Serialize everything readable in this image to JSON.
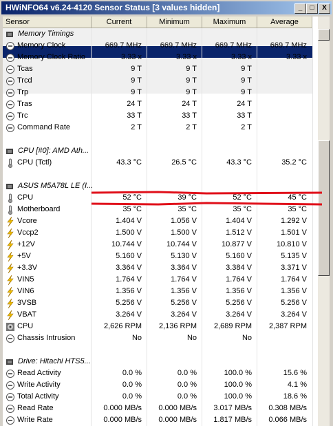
{
  "window": {
    "title": "HWiNFO64 v6.24-4120 Sensor Status [3 values hidden]"
  },
  "table": {
    "columns": [
      "Sensor",
      "Current",
      "Minimum",
      "Maximum",
      "Average"
    ],
    "sections": [
      {
        "title": "Memory Timings",
        "rows": [
          {
            "label": "Memory Clock",
            "icon": "clock",
            "values": [
              "669.7 MHz",
              "669.7 MHz",
              "669.7 MHz",
              "669.7 MHz"
            ]
          },
          {
            "label": "Memory Clock Ratio",
            "icon": "clock",
            "values": [
              "3.33 x",
              "3.33 x",
              "3.33 x",
              "3.33 x"
            ]
          },
          {
            "label": "Tcas",
            "icon": "clock",
            "values": [
              "9 T",
              "9 T",
              "9 T",
              null
            ]
          },
          {
            "label": "Trcd",
            "icon": "clock",
            "values": [
              "9 T",
              "9 T",
              "9 T",
              null
            ]
          },
          {
            "label": "Trp",
            "icon": "clock",
            "values": [
              "9 T",
              "9 T",
              "9 T",
              null
            ]
          },
          {
            "label": "Tras",
            "icon": "clock",
            "values": [
              "24 T",
              "24 T",
              "24 T",
              null
            ]
          },
          {
            "label": "Trc",
            "icon": "clock",
            "values": [
              "33 T",
              "33 T",
              "33 T",
              null
            ]
          },
          {
            "label": "Command Rate",
            "icon": "clock",
            "values": [
              "2 T",
              "2 T",
              "2 T",
              null
            ]
          }
        ]
      },
      {
        "title": "CPU [#0]: AMD Ath...",
        "rows": [
          {
            "label": "CPU (Tctl)",
            "icon": "temp",
            "values": [
              "43.3 °C",
              "26.5 °C",
              "43.3 °C",
              "35.2 °C"
            ]
          }
        ]
      },
      {
        "title": "ASUS M5A78L LE (I...",
        "rows": [
          {
            "label": "CPU",
            "icon": "temp",
            "values": [
              "52 °C",
              "39 °C",
              "52 °C",
              "45 °C"
            ]
          },
          {
            "label": "Motherboard",
            "icon": "temp",
            "values": [
              "35 °C",
              "35 °C",
              "35 °C",
              "35 °C"
            ]
          },
          {
            "label": "Vcore",
            "icon": "volt",
            "values": [
              "1.404 V",
              "1.056 V",
              "1.404 V",
              "1.292 V"
            ]
          },
          {
            "label": "Vccp2",
            "icon": "volt",
            "values": [
              "1.500 V",
              "1.500 V",
              "1.512 V",
              "1.501 V"
            ]
          },
          {
            "label": "+12V",
            "icon": "volt",
            "values": [
              "10.744 V",
              "10.744 V",
              "10.877 V",
              "10.810 V"
            ]
          },
          {
            "label": "+5V",
            "icon": "volt",
            "values": [
              "5.160 V",
              "5.130 V",
              "5.160 V",
              "5.135 V"
            ]
          },
          {
            "label": "+3.3V",
            "icon": "volt",
            "values": [
              "3.364 V",
              "3.364 V",
              "3.384 V",
              "3.371 V"
            ]
          },
          {
            "label": "VIN5",
            "icon": "volt",
            "values": [
              "1.764 V",
              "1.764 V",
              "1.764 V",
              "1.764 V"
            ]
          },
          {
            "label": "VIN6",
            "icon": "volt",
            "values": [
              "1.356 V",
              "1.356 V",
              "1.356 V",
              "1.356 V"
            ]
          },
          {
            "label": "3VSB",
            "icon": "volt",
            "values": [
              "5.256 V",
              "5.256 V",
              "5.256 V",
              "5.256 V"
            ]
          },
          {
            "label": "VBAT",
            "icon": "volt",
            "values": [
              "3.264 V",
              "3.264 V",
              "3.264 V",
              "3.264 V"
            ]
          },
          {
            "label": "CPU",
            "icon": "fan",
            "values": [
              "2,626 RPM",
              "2,136 RPM",
              "2,689 RPM",
              "2,387 RPM"
            ]
          },
          {
            "label": "Chassis Intrusion",
            "icon": "clock",
            "values": [
              "No",
              "No",
              "No",
              null
            ]
          }
        ]
      },
      {
        "title": "Drive: Hitachi HTS5...",
        "rows": [
          {
            "label": "Read Activity",
            "icon": "clock",
            "values": [
              "0.0 %",
              "0.0 %",
              "100.0 %",
              "15.6 %"
            ]
          },
          {
            "label": "Write Activity",
            "icon": "clock",
            "values": [
              "0.0 %",
              "0.0 %",
              "100.0 %",
              "4.1 %"
            ]
          },
          {
            "label": "Total Activity",
            "icon": "clock",
            "values": [
              "0.0 %",
              "0.0 %",
              "100.0 %",
              "18.6 %"
            ]
          },
          {
            "label": "Read Rate",
            "icon": "clock",
            "values": [
              "0.000 MB/s",
              "0.000 MB/s",
              "3.017 MB/s",
              "0.308 MB/s"
            ]
          },
          {
            "label": "Write Rate",
            "icon": "clock",
            "values": [
              "0.000 MB/s",
              "0.000 MB/s",
              "1.817 MB/s",
              "0.066 MB/s"
            ]
          }
        ]
      }
    ]
  }
}
